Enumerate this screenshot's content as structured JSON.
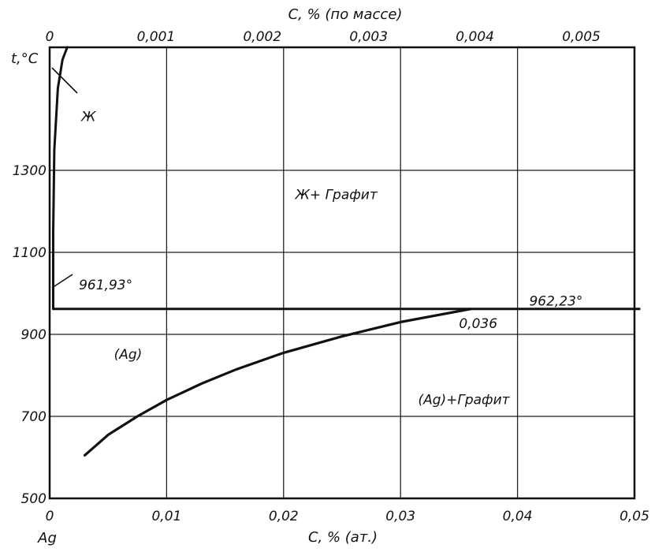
{
  "chart_data": {
    "type": "line",
    "title": "",
    "xlabel_bottom": "C, % (ат.)",
    "xlabel_top": "C, % (по массе)",
    "ylabel": "t,°C",
    "element_label": "Ag",
    "x_bottom_lim": [
      0,
      0.05
    ],
    "x_bottom_ticks": [
      "0",
      "0,01",
      "0,02",
      "0,03",
      "0,04",
      "0,05"
    ],
    "x_bottom_tick_values": [
      0,
      0.01,
      0.02,
      0.03,
      0.04,
      0.05
    ],
    "x_top_lim": [
      0,
      0.0055
    ],
    "x_top_ticks": [
      "0",
      "0,001",
      "0,002",
      "0,003",
      "0,004",
      "0,005"
    ],
    "x_top_tick_values": [
      0,
      0.001,
      0.002,
      0.003,
      0.004,
      0.005
    ],
    "ylim": [
      500,
      1600
    ],
    "y_ticks": [
      "1300",
      "1100",
      "900",
      "700",
      "500"
    ],
    "y_tick_values": [
      1300,
      1100,
      900,
      700,
      500
    ],
    "grid": true,
    "series": [
      {
        "x": [
          0.0003,
          0.0003,
          0.0004,
          0.0007,
          0.0011,
          0.0015
        ],
        "y": [
          962,
          1150,
          1350,
          1500,
          1570,
          1600
        ]
      },
      {
        "x": [
          0.003,
          0.005,
          0.0075,
          0.01,
          0.013,
          0.016,
          0.02,
          0.025,
          0.03,
          0.036
        ],
        "y": [
          605,
          655,
          700,
          740,
          780,
          815,
          855,
          895,
          930,
          962
        ]
      }
    ],
    "eutectic_line": {
      "x": [
        0.0003,
        0.0505
      ],
      "y": [
        962,
        962
      ]
    },
    "annotations": [
      {
        "text": "Ж",
        "x": 0.0027,
        "y": 1420
      },
      {
        "text": "Ж+ Графит",
        "x": 0.021,
        "y": 1230
      },
      {
        "text": "961,93°",
        "x": 0.0025,
        "y": 1010
      },
      {
        "text": "962,23°",
        "x": 0.041,
        "y": 970
      },
      {
        "text": "0,036",
        "x": 0.035,
        "y": 915
      },
      {
        "text": "(Ag)",
        "x": 0.0055,
        "y": 840
      },
      {
        "text": "(Ag)+Графит",
        "x": 0.0315,
        "y": 730
      }
    ]
  }
}
